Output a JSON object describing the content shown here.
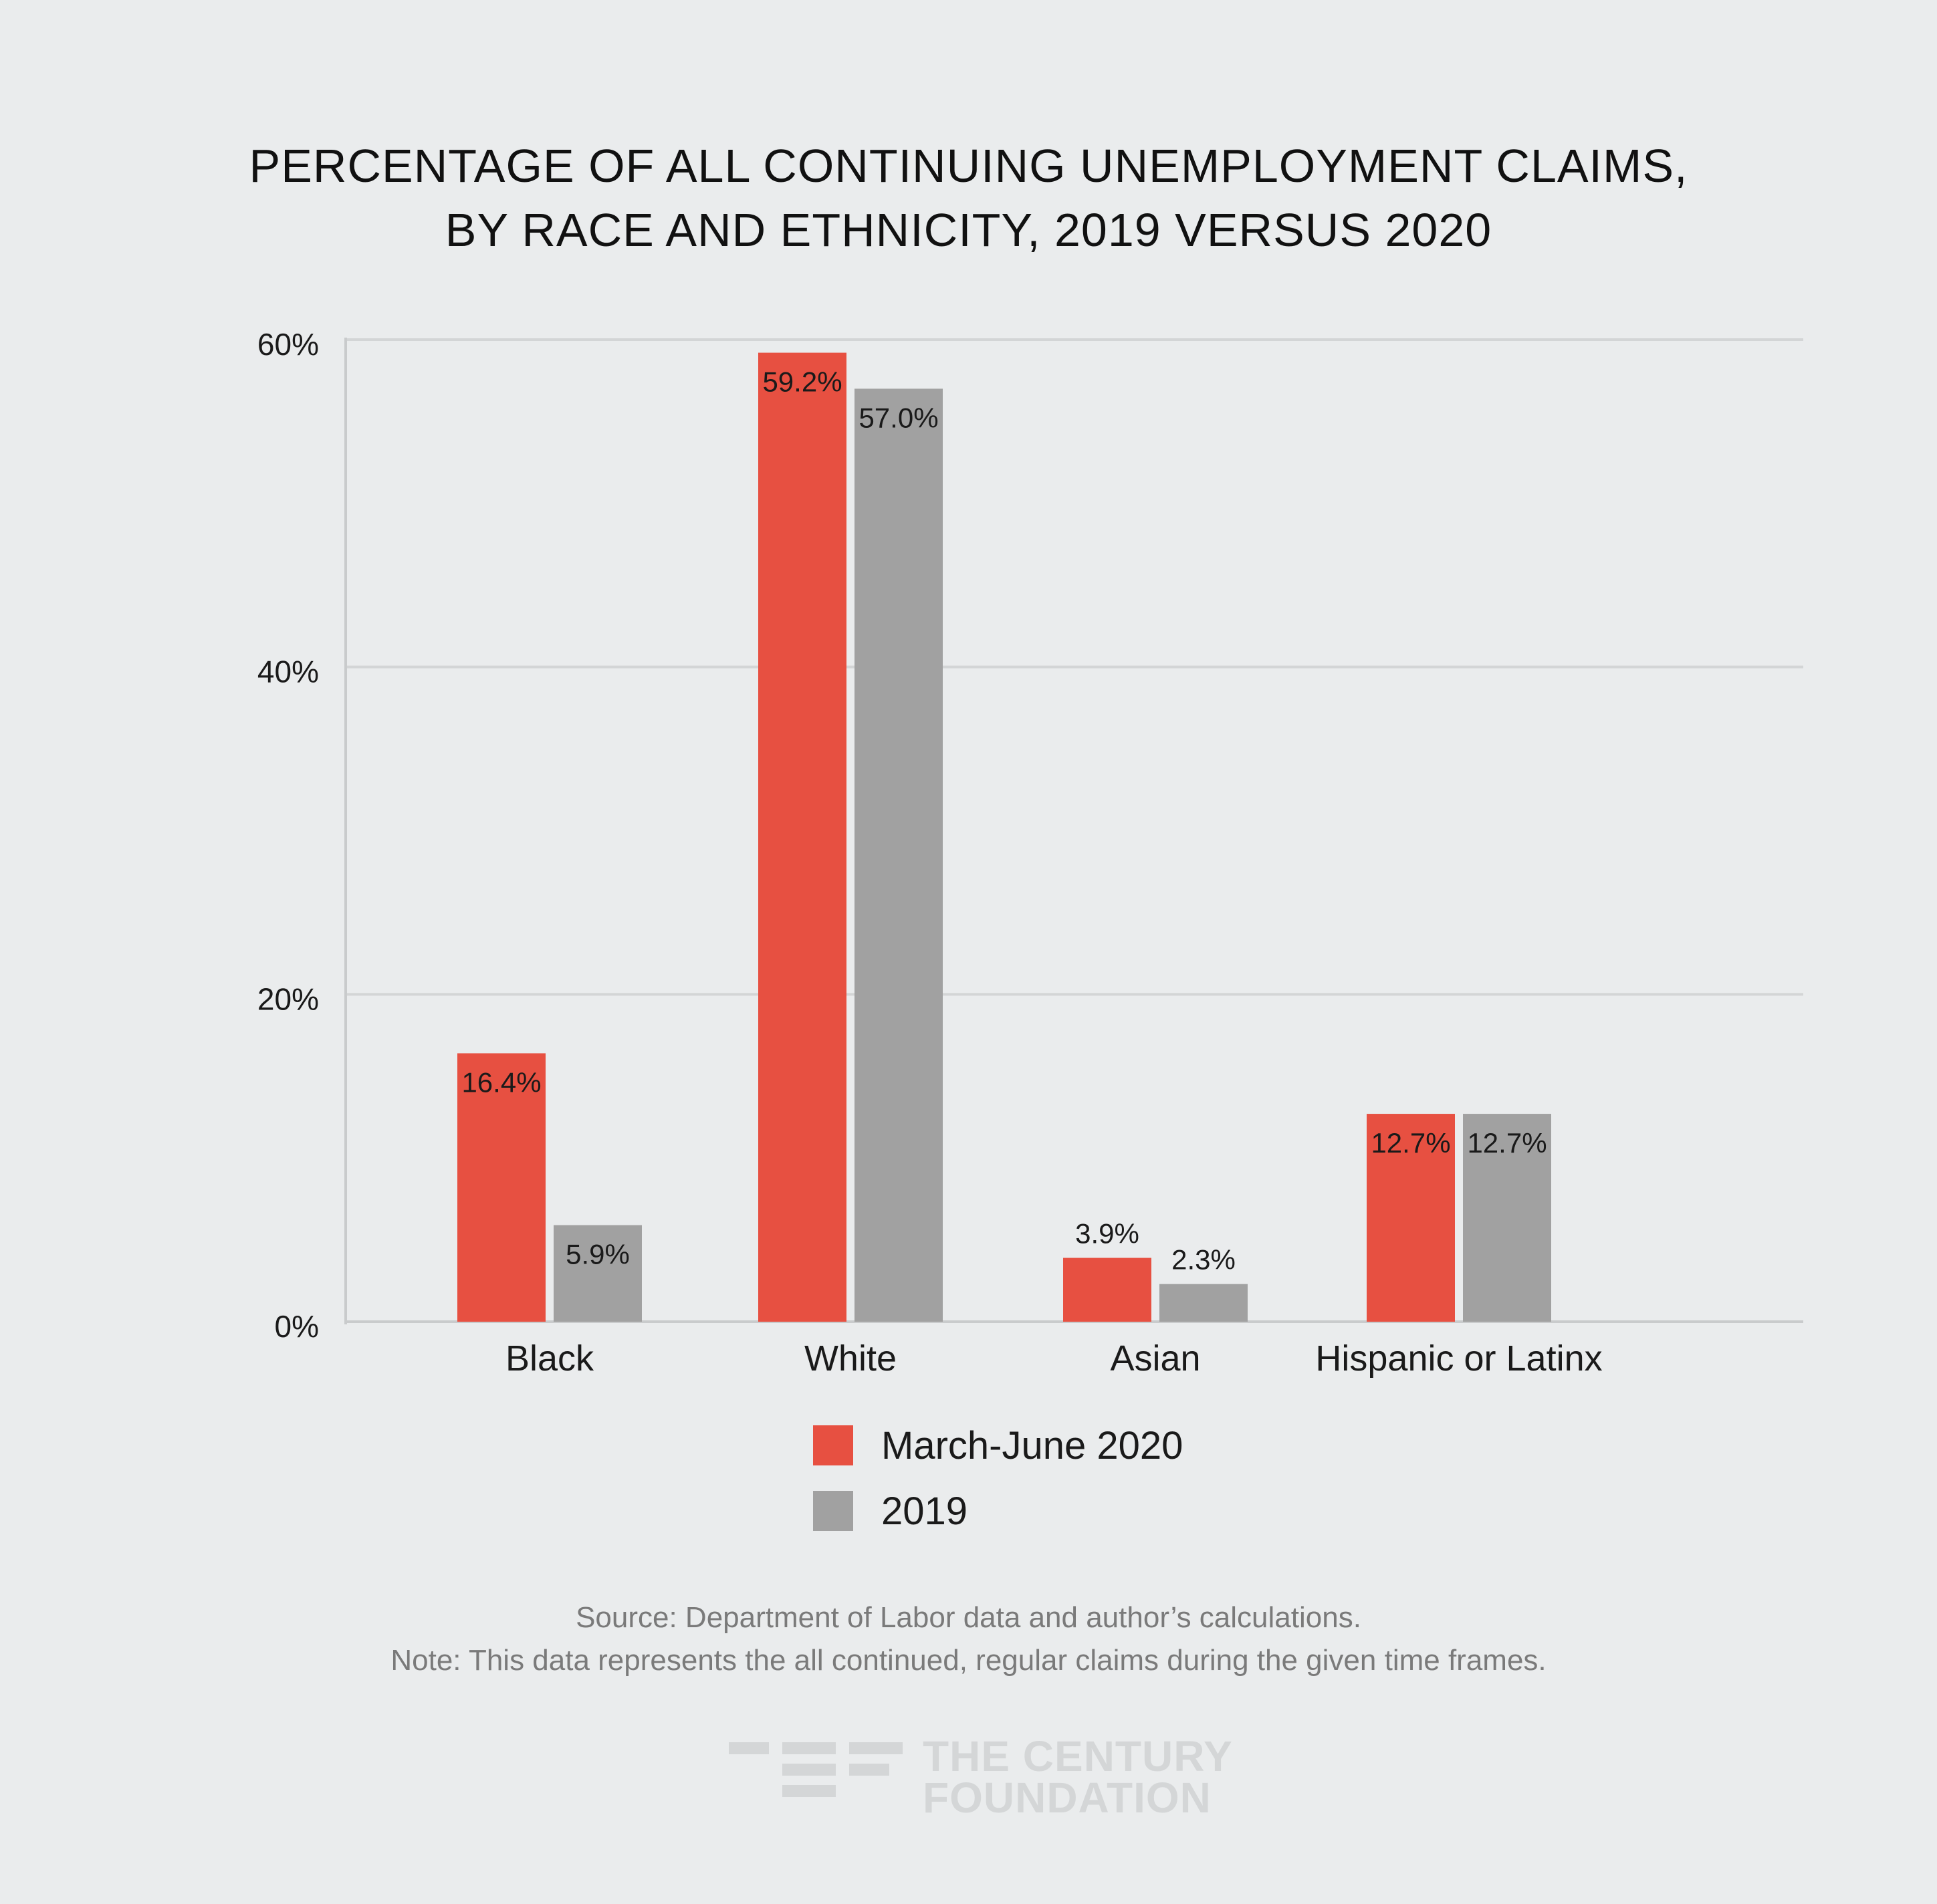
{
  "title": {
    "line1": "PERCENTAGE OF ALL CONTINUING UNEMPLOYMENT CLAIMS,",
    "line2": "BY RACE AND ETHNICITY, 2019 VERSUS 2020"
  },
  "chart_data": {
    "type": "bar",
    "title": "PERCENTAGE OF ALL CONTINUING UNEMPLOYMENT CLAIMS, BY RACE AND ETHNICITY, 2019 VERSUS 2020",
    "categories": [
      "Black",
      "White",
      "Asian",
      "Hispanic or Latinx"
    ],
    "series": [
      {
        "name": "March-June 2020",
        "color": "#e75041",
        "values": [
          16.4,
          59.2,
          3.9,
          12.7
        ],
        "labels": [
          "16.4%",
          "59.2%",
          "3.9%",
          "12.7%"
        ]
      },
      {
        "name": "2019",
        "color": "#a1a1a1",
        "values": [
          5.9,
          57.0,
          2.3,
          12.7
        ],
        "labels": [
          "5.9%",
          "57.0%",
          "2.3%",
          "12.7%"
        ]
      }
    ],
    "yticks": [
      0,
      20,
      40,
      60
    ],
    "ytick_labels": [
      "0%",
      "20%",
      "40%",
      "60%"
    ],
    "ylim": [
      0,
      60
    ],
    "xlabel": "",
    "ylabel": "",
    "grid": true,
    "legend_position": "bottom"
  },
  "footer": {
    "source": "Source: Department of Labor data and author’s calculations.",
    "note": "Note: This data represents the all continued, regular claims during the given time frames."
  },
  "logo": {
    "line1": "THE CENTURY",
    "line2": "FOUNDATION",
    "color": "#d4d6d7"
  }
}
